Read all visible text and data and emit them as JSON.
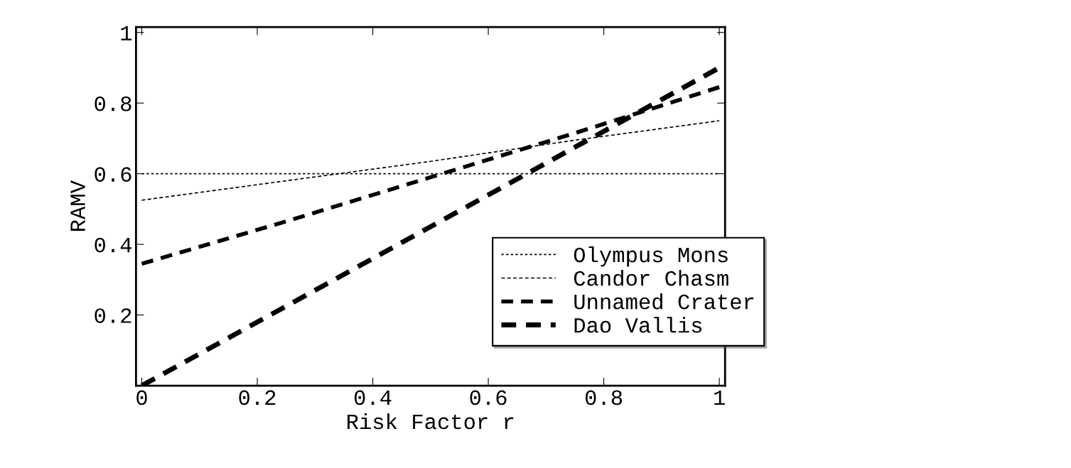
{
  "chart_data": {
    "type": "line",
    "xlabel": "Risk Factor r",
    "ylabel": "RAMV",
    "x": [
      0,
      0.25,
      0.5,
      0.75,
      1
    ],
    "series": [
      {
        "name": "Olympus Mons",
        "color": "#000000",
        "values": [
          0.6,
          0.6,
          0.6,
          0.6,
          0.6
        ]
      },
      {
        "name": "Candor Chasm",
        "color": "#000000",
        "values": [
          0.525,
          0.58,
          0.635,
          0.695,
          0.75
        ]
      },
      {
        "name": "Unnamed Crater",
        "color": "#000000",
        "values": [
          0.345,
          0.465,
          0.59,
          0.715,
          0.845
        ]
      },
      {
        "name": "Dao Vallis",
        "color": "#000000",
        "values": [
          0.0,
          0.225,
          0.45,
          0.675,
          0.9
        ]
      }
    ],
    "xlim": [
      -0.01,
      1.01
    ],
    "ylim": [
      0,
      1.015
    ],
    "xticks": [
      {
        "value": 0,
        "label": "0"
      },
      0.2,
      0.4,
      0.6,
      0.8,
      {
        "value": 1,
        "label": "1"
      }
    ],
    "yticks": [
      0.2,
      0.4,
      0.6,
      0.8,
      {
        "value": 1,
        "label": "1"
      }
    ],
    "grid": false,
    "legend": "bottom right",
    "marker": "none",
    "line_style": "dashed"
  }
}
